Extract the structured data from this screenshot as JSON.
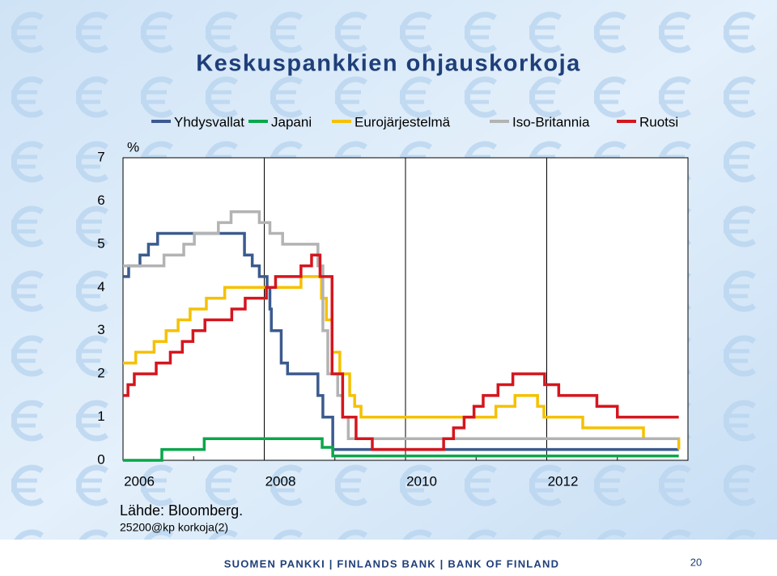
{
  "chart_data": {
    "type": "line",
    "step": "post",
    "title": "Keskuspankkien ohjauskorkoja",
    "unit_label": "%",
    "source": "Lähde: Bloomberg.",
    "code": "25200@kp korkoja(2)",
    "xlim": [
      2006,
      2014
    ],
    "ylim": [
      0,
      7
    ],
    "xticks": [
      2006,
      2008,
      2010,
      2012
    ],
    "xticks_minor": [
      2007,
      2009,
      2011,
      2013
    ],
    "yticks": [
      0,
      1,
      2,
      3,
      4,
      5,
      6,
      7
    ],
    "grid": "x",
    "series": [
      {
        "name": "Yhdysvallat",
        "color": "#3b5b8e",
        "x": [
          2006.0,
          2006.08,
          2006.24,
          2006.36,
          2006.49,
          2007.72,
          2007.83,
          2007.93,
          2008.04,
          2008.08,
          2008.1,
          2008.24,
          2008.33,
          2008.76,
          2008.83,
          2008.97,
          2013.87
        ],
        "values": [
          4.25,
          4.5,
          4.75,
          5.0,
          5.25,
          4.75,
          4.5,
          4.25,
          4.0,
          3.5,
          3.0,
          2.25,
          2.0,
          1.5,
          1.0,
          0.25,
          0.25
        ]
      },
      {
        "name": "Japani",
        "color": "#0aa64b",
        "x": [
          2006.0,
          2006.55,
          2007.15,
          2008.82,
          2008.97,
          2013.87
        ],
        "values": [
          0,
          0.25,
          0.5,
          0.3,
          0.1,
          0.1
        ]
      },
      {
        "name": "Eurojärjestelmä",
        "color": "#f5c100",
        "x": [
          2006.0,
          2006.18,
          2006.44,
          2006.61,
          2006.78,
          2006.95,
          2007.18,
          2007.44,
          2008.52,
          2008.81,
          2008.88,
          2008.96,
          2009.07,
          2009.21,
          2009.28,
          2009.37,
          2011.28,
          2011.55,
          2011.87,
          2011.96,
          2012.51,
          2013.37,
          2013.87
        ],
        "values": [
          2.25,
          2.5,
          2.75,
          3.0,
          3.25,
          3.5,
          3.75,
          4.0,
          4.25,
          3.75,
          3.25,
          2.5,
          2.0,
          1.5,
          1.25,
          1.0,
          1.25,
          1.5,
          1.25,
          1.0,
          0.75,
          0.5,
          0.25
        ]
      },
      {
        "name": "Iso-Britannia",
        "color": "#b3b3b3",
        "x": [
          2006.0,
          2006.58,
          2006.86,
          2007.01,
          2007.35,
          2007.53,
          2007.93,
          2008.08,
          2008.26,
          2008.76,
          2008.83,
          2008.9,
          2009.04,
          2009.11,
          2009.19,
          2013.87
        ],
        "values": [
          4.5,
          4.75,
          5.0,
          5.25,
          5.5,
          5.75,
          5.5,
          5.25,
          5.0,
          4.5,
          3.0,
          2.0,
          1.5,
          1.0,
          0.5,
          0.5
        ]
      },
      {
        "name": "Ruotsi",
        "color": "#d4161e",
        "x": [
          2006.0,
          2006.07,
          2006.16,
          2006.47,
          2006.67,
          2006.84,
          2006.99,
          2007.16,
          2007.54,
          2007.73,
          2008.03,
          2008.16,
          2008.52,
          2008.67,
          2008.79,
          2008.96,
          2009.11,
          2009.3,
          2009.53,
          2010.54,
          2010.68,
          2010.83,
          2010.97,
          2011.1,
          2011.31,
          2011.52,
          2011.97,
          2012.17,
          2012.71,
          2013.0,
          2013.87
        ],
        "values": [
          1.5,
          1.75,
          2.0,
          2.25,
          2.5,
          2.75,
          3.0,
          3.25,
          3.5,
          3.75,
          4.0,
          4.25,
          4.5,
          4.75,
          4.25,
          2.0,
          1.0,
          0.5,
          0.25,
          0.5,
          0.75,
          1.0,
          1.25,
          1.5,
          1.75,
          2.0,
          1.75,
          1.5,
          1.25,
          1.0,
          1.0
        ]
      }
    ]
  },
  "footer": {
    "text": "SUOMEN PANKKI | FINLANDS BANK | BANK OF FINLAND",
    "page": 20
  }
}
